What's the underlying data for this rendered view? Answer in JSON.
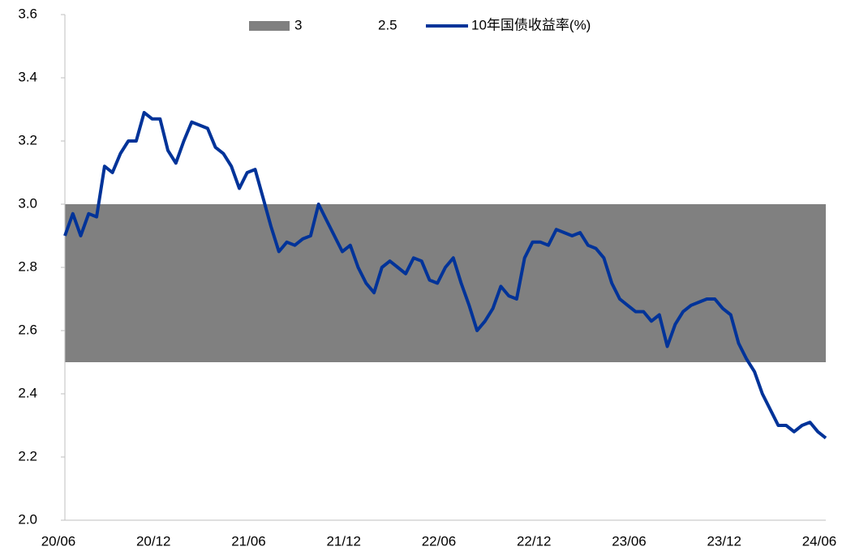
{
  "chart_data": {
    "type": "line",
    "categories": [
      "20/06",
      null,
      null,
      null,
      null,
      null,
      null,
      null,
      null,
      null,
      null,
      null,
      "20/12",
      null,
      null,
      null,
      null,
      null,
      null,
      null,
      null,
      null,
      null,
      null,
      "21/06",
      null,
      null,
      null,
      null,
      null,
      null,
      null,
      null,
      null,
      null,
      null,
      "21/12",
      null,
      null,
      null,
      null,
      null,
      null,
      null,
      null,
      null,
      null,
      null,
      "22/06",
      null,
      null,
      null,
      null,
      null,
      null,
      null,
      null,
      null,
      null,
      null,
      "22/12",
      null,
      null,
      null,
      null,
      null,
      null,
      null,
      null,
      null,
      null,
      null,
      "23/06",
      null,
      null,
      null,
      null,
      null,
      null,
      null,
      null,
      null,
      null,
      null,
      "23/12",
      null,
      null,
      null,
      null,
      null,
      null,
      null,
      null,
      null,
      null,
      null,
      "24/06"
    ],
    "series": [
      {
        "name": "3",
        "type": "area",
        "color": "#808080",
        "values": [
          3,
          3,
          3,
          3,
          3,
          3,
          3,
          3,
          3,
          3,
          3,
          3,
          3,
          3,
          3,
          3,
          3,
          3,
          3,
          3,
          3,
          3,
          3,
          3,
          3,
          3,
          3,
          3,
          3,
          3,
          3,
          3,
          3,
          3,
          3,
          3,
          3,
          3,
          3,
          3,
          3,
          3,
          3,
          3,
          3,
          3,
          3,
          3,
          3,
          3,
          3,
          3,
          3,
          3,
          3,
          3,
          3,
          3,
          3,
          3,
          3,
          3,
          3,
          3,
          3,
          3,
          3,
          3,
          3,
          3,
          3,
          3,
          3,
          3,
          3,
          3,
          3,
          3,
          3,
          3,
          3,
          3,
          3,
          3,
          3,
          3,
          3,
          3,
          3,
          3,
          3,
          3,
          3,
          3,
          3,
          3,
          3
        ]
      },
      {
        "name": "2.5",
        "type": "area",
        "color": "#ffffff",
        "values": [
          2.5,
          2.5,
          2.5,
          2.5,
          2.5,
          2.5,
          2.5,
          2.5,
          2.5,
          2.5,
          2.5,
          2.5,
          2.5,
          2.5,
          2.5,
          2.5,
          2.5,
          2.5,
          2.5,
          2.5,
          2.5,
          2.5,
          2.5,
          2.5,
          2.5,
          2.5,
          2.5,
          2.5,
          2.5,
          2.5,
          2.5,
          2.5,
          2.5,
          2.5,
          2.5,
          2.5,
          2.5,
          2.5,
          2.5,
          2.5,
          2.5,
          2.5,
          2.5,
          2.5,
          2.5,
          2.5,
          2.5,
          2.5,
          2.5,
          2.5,
          2.5,
          2.5,
          2.5,
          2.5,
          2.5,
          2.5,
          2.5,
          2.5,
          2.5,
          2.5,
          2.5,
          2.5,
          2.5,
          2.5,
          2.5,
          2.5,
          2.5,
          2.5,
          2.5,
          2.5,
          2.5,
          2.5,
          2.5,
          2.5,
          2.5,
          2.5,
          2.5,
          2.5,
          2.5,
          2.5,
          2.5,
          2.5,
          2.5,
          2.5,
          2.5,
          2.5,
          2.5,
          2.5,
          2.5,
          2.5,
          2.5,
          2.5,
          2.5,
          2.5,
          2.5,
          2.5,
          2.5
        ]
      },
      {
        "name": "10年国债收益率(%)",
        "type": "line",
        "color": "#003399",
        "values": [
          2.9,
          2.97,
          2.9,
          2.97,
          2.96,
          3.12,
          3.1,
          3.16,
          3.2,
          3.2,
          3.29,
          3.27,
          3.27,
          3.17,
          3.13,
          3.2,
          3.26,
          3.25,
          3.24,
          3.18,
          3.16,
          3.12,
          3.05,
          3.1,
          3.11,
          3.02,
          2.93,
          2.85,
          2.88,
          2.87,
          2.89,
          2.9,
          3.0,
          2.95,
          2.9,
          2.85,
          2.87,
          2.8,
          2.75,
          2.72,
          2.8,
          2.82,
          2.8,
          2.78,
          2.83,
          2.82,
          2.76,
          2.75,
          2.8,
          2.83,
          2.75,
          2.68,
          2.6,
          2.63,
          2.67,
          2.74,
          2.71,
          2.7,
          2.83,
          2.88,
          2.88,
          2.87,
          2.92,
          2.91,
          2.9,
          2.91,
          2.87,
          2.86,
          2.83,
          2.75,
          2.7,
          2.68,
          2.66,
          2.66,
          2.63,
          2.65,
          2.55,
          2.62,
          2.66,
          2.68,
          2.69,
          2.7,
          2.7,
          2.67,
          2.65,
          2.56,
          2.51,
          2.47,
          2.4,
          2.35,
          2.3,
          2.3,
          2.28,
          2.3,
          2.31,
          2.28,
          2.26
        ]
      }
    ],
    "ylim": [
      2.0,
      3.6
    ],
    "yticks": [
      {
        "value": 2.0,
        "label": "2.0"
      },
      2.2,
      2.4,
      2.6,
      2.8,
      {
        "value": 3.0,
        "label": "3.0"
      },
      3.2,
      3.4,
      3.6
    ]
  }
}
